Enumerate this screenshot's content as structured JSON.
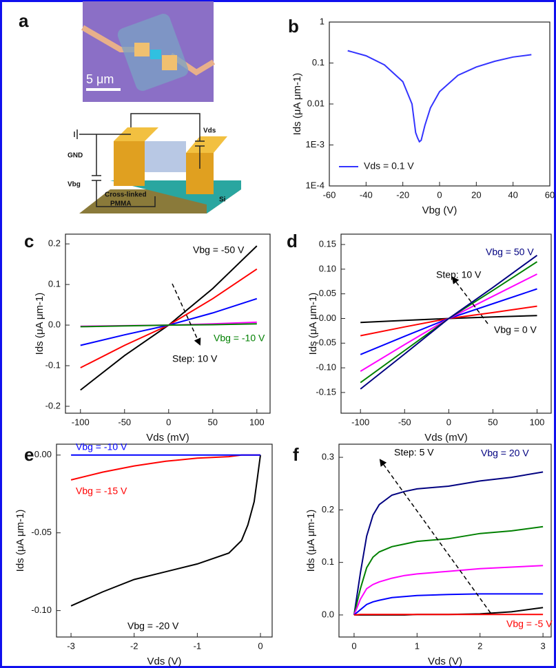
{
  "panel_a": {
    "label": "a",
    "scale_bar": "5 μm",
    "labels": [
      "GND",
      "Vds",
      "Vbg",
      "Cross-linked",
      "PMMA",
      "Si"
    ]
  },
  "chart_data": [
    {
      "type": "line",
      "panel_label": "b",
      "x_label": "Vbg (V)",
      "y_label": "Ids (μA μm-1)",
      "log_y": true,
      "legend": "lower left",
      "xlim": [
        -60,
        60
      ],
      "ylim": [
        0.0001,
        1
      ],
      "xticks": [
        -60,
        -40,
        -20,
        0,
        20,
        40,
        60
      ],
      "yticks": [
        {
          "value": 0.0001,
          "label": "1E-4"
        },
        {
          "value": 0.001,
          "label": "1E-3"
        },
        0.01,
        0.1,
        1
      ],
      "x": [
        -50,
        -40,
        -30,
        -20,
        -15,
        -13,
        -12,
        -11,
        -10,
        -8,
        -5,
        0,
        10,
        20,
        30,
        40,
        50
      ],
      "series": [
        {
          "name": "Vds = 0.1 V",
          "color": "#3333ff",
          "values": [
            0.2,
            0.15,
            0.09,
            0.035,
            0.01,
            0.002,
            0.0015,
            0.0012,
            0.0013,
            0.003,
            0.008,
            0.02,
            0.05,
            0.08,
            0.11,
            0.14,
            0.16
          ]
        }
      ],
      "annotations": []
    },
    {
      "type": "line",
      "panel_label": "c",
      "x_label": "Vds (mV)",
      "y_label": "Ids (μA μm-1)",
      "log_y": false,
      "xlim": [
        -117,
        115
      ],
      "ylim": [
        -0.217,
        0.224
      ],
      "xticks": [
        -100,
        -50,
        0,
        50,
        100
      ],
      "yticks": [
        -0.2,
        -0.1,
        {
          "value": 0,
          "label": "0.0"
        },
        0.1,
        0.2
      ],
      "x": [
        -100,
        -50,
        0,
        50,
        100
      ],
      "series": [
        {
          "color": "#000000",
          "values": [
            -0.16,
            -0.075,
            0,
            0.09,
            0.195
          ]
        },
        {
          "color": "#ff0000",
          "values": [
            -0.105,
            -0.05,
            0,
            0.065,
            0.138
          ]
        },
        {
          "color": "#0000ff",
          "values": [
            -0.05,
            -0.024,
            0,
            0.03,
            0.065
          ]
        },
        {
          "color": "#ff00ff",
          "values": [
            -0.003,
            -0.0015,
            0,
            0.003,
            0.007
          ]
        },
        {
          "color": "#008000",
          "values": [
            -0.004,
            -0.002,
            0,
            0.001,
            0.003
          ]
        }
      ],
      "annotations": [
        {
          "text": "Vbg = -50 V",
          "color": "#000000"
        },
        {
          "text": "Vbg = -10 V",
          "color": "#008000"
        },
        {
          "text": "Step: 10 V",
          "color": "#000000"
        }
      ]
    },
    {
      "type": "line",
      "panel_label": "d",
      "x_label": "Vds (mV)",
      "y_label": "Ids (μA μm-1)",
      "log_y": false,
      "xlim": [
        -122,
        116
      ],
      "ylim": [
        -0.192,
        0.171
      ],
      "xticks": [
        -100,
        -50,
        0,
        50,
        100
      ],
      "yticks": [
        -0.15,
        {
          "value": -0.1,
          "label": "-0.10"
        },
        -0.05,
        {
          "value": 0,
          "label": "0.00"
        },
        0.05,
        {
          "value": 0.1,
          "label": "0.10"
        },
        0.15
      ],
      "x": [
        -100,
        -50,
        0,
        50,
        100
      ],
      "series": [
        {
          "color": "#000000",
          "values": [
            -0.008,
            -0.004,
            0,
            0.003,
            0.006
          ]
        },
        {
          "color": "#ff0000",
          "values": [
            -0.035,
            -0.017,
            0,
            0.012,
            0.025
          ]
        },
        {
          "color": "#0000ff",
          "values": [
            -0.073,
            -0.036,
            0,
            0.03,
            0.06
          ]
        },
        {
          "color": "#ff00ff",
          "values": [
            -0.107,
            -0.053,
            0,
            0.045,
            0.09
          ]
        },
        {
          "color": "#008000",
          "values": [
            -0.13,
            -0.065,
            0,
            0.057,
            0.115
          ]
        },
        {
          "color": "#000080",
          "values": [
            -0.143,
            -0.072,
            0,
            0.063,
            0.128
          ]
        }
      ],
      "annotations": [
        {
          "text": "Vbg = 50 V",
          "color": "#000080"
        },
        {
          "text": "Step: 10 V",
          "color": "#000000"
        },
        {
          "text": "Vbg = 0 V",
          "color": "#000000"
        }
      ]
    },
    {
      "type": "line",
      "panel_label": "e",
      "x_label": "Vds (V)",
      "y_label": "Ids (μA μm-1)",
      "log_y": false,
      "xlim": [
        -3.23,
        0.185
      ],
      "ylim": [
        -0.117,
        0.007
      ],
      "xticks": [
        -3,
        -2,
        -1,
        0
      ],
      "yticks": [
        {
          "value": -0.1,
          "label": "-0.10"
        },
        -0.05,
        {
          "value": 0,
          "label": "0.00"
        }
      ],
      "x": [
        -3,
        -2.5,
        -2,
        -1.5,
        -1,
        -0.5,
        -0.3,
        -0.2,
        -0.1,
        -0.05,
        0
      ],
      "series": [
        {
          "color": "#000000",
          "values": [
            -0.097,
            -0.088,
            -0.08,
            -0.075,
            -0.07,
            -0.063,
            -0.055,
            -0.045,
            -0.03,
            -0.015,
            0
          ]
        },
        {
          "color": "#ff0000",
          "values": [
            -0.016,
            -0.011,
            -0.007,
            -0.004,
            -0.002,
            -0.001,
            0,
            0,
            0,
            0,
            0
          ]
        },
        {
          "color": "#0000ff",
          "values": [
            0,
            0,
            0,
            0,
            0,
            0,
            0,
            0,
            0,
            0,
            0
          ]
        }
      ],
      "annotations": [
        {
          "text": "Vbg = -10 V",
          "color": "#0000ff"
        },
        {
          "text": "Vbg = -15 V",
          "color": "#ff0000"
        },
        {
          "text": "Vbg = -20 V",
          "color": "#000000"
        }
      ]
    },
    {
      "type": "line",
      "panel_label": "f",
      "x_label": "Vds (V)",
      "y_label": "Ids (μA μm-1)",
      "log_y": false,
      "xlim": [
        -0.24,
        3.13
      ],
      "ylim": [
        -0.042,
        0.325
      ],
      "xticks": [
        0,
        1,
        2,
        3
      ],
      "yticks": [
        {
          "value": 0,
          "label": "0.0"
        },
        0.1,
        0.2,
        0.3
      ],
      "x": [
        0,
        0.1,
        0.2,
        0.3,
        0.4,
        0.6,
        0.8,
        1,
        1.5,
        2,
        2.5,
        3
      ],
      "series": [
        {
          "color": "#000080",
          "values": [
            0,
            0.08,
            0.15,
            0.19,
            0.21,
            0.228,
            0.235,
            0.24,
            0.245,
            0.255,
            0.262,
            0.272
          ]
        },
        {
          "color": "#008000",
          "values": [
            0,
            0.05,
            0.09,
            0.11,
            0.12,
            0.13,
            0.135,
            0.14,
            0.145,
            0.155,
            0.16,
            0.168
          ]
        },
        {
          "color": "#ff00ff",
          "values": [
            0,
            0.03,
            0.05,
            0.058,
            0.063,
            0.07,
            0.075,
            0.078,
            0.083,
            0.088,
            0.091,
            0.094
          ]
        },
        {
          "color": "#0000ff",
          "values": [
            0,
            0.01,
            0.02,
            0.025,
            0.028,
            0.033,
            0.035,
            0.037,
            0.039,
            0.04,
            0.04,
            0.04
          ]
        },
        {
          "color": "#000000",
          "values": [
            0,
            0,
            0,
            0,
            0,
            0,
            0,
            0.001,
            0.001,
            0.002,
            0.006,
            0.014
          ]
        },
        {
          "color": "#ff0000",
          "values": [
            0,
            0.001,
            0.001,
            0.001,
            0.001,
            0.001,
            0.001,
            0.001,
            0.001,
            0.001,
            0.001,
            0.001
          ]
        }
      ],
      "annotations": [
        {
          "text": "Step: 5 V",
          "color": "#000000"
        },
        {
          "text": "Vbg = 20 V",
          "color": "#000080"
        },
        {
          "text": "Vbg = -5 V",
          "color": "#ff0000"
        }
      ]
    }
  ]
}
